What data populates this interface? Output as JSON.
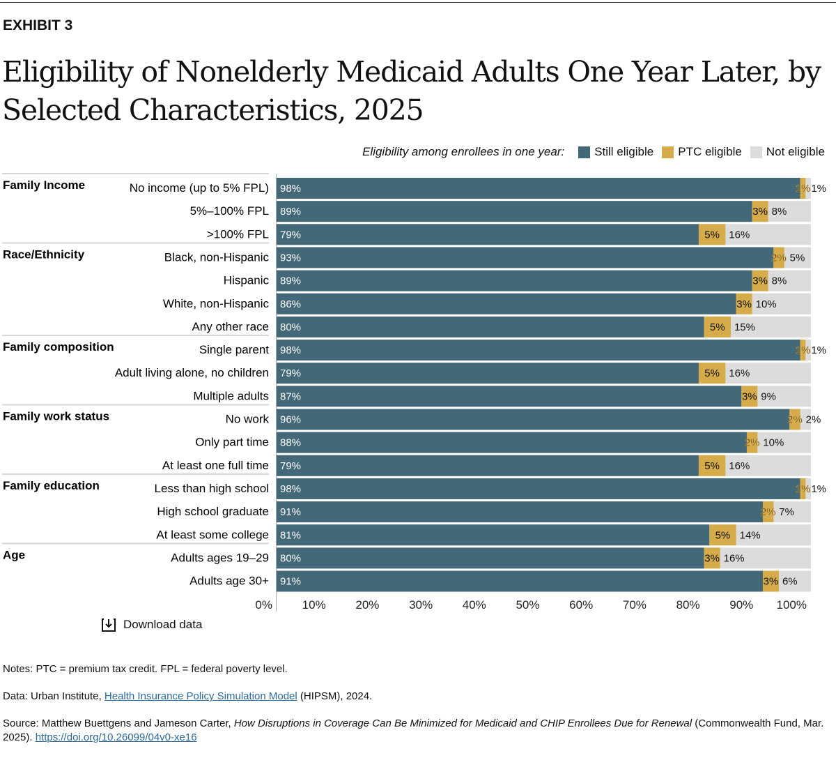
{
  "header": {
    "exhibit": "EXHIBIT 3",
    "title": "Eligibility of Nonelderly Medicaid Adults One Year Later, by Selected Characteristics, 2025"
  },
  "legend": {
    "title": "Eligibility among enrollees in one year:",
    "items": [
      {
        "label": "Still eligible",
        "color": "#436878"
      },
      {
        "label": "PTC eligible",
        "color": "#d6ab4a"
      },
      {
        "label": "Not eligible",
        "color": "#dcdcdc"
      }
    ]
  },
  "chart_data": {
    "type": "bar",
    "orientation": "horizontal",
    "stacked": true,
    "xlim": [
      0,
      100
    ],
    "x_ticks": [
      "0%",
      "10%",
      "20%",
      "30%",
      "40%",
      "50%",
      "60%",
      "70%",
      "80%",
      "90%",
      "100%"
    ],
    "series_names": [
      "Still eligible",
      "PTC eligible",
      "Not eligible"
    ],
    "groups": [
      {
        "name": "Family Income",
        "rows": [
          {
            "label": "No income (up to 5% FPL)",
            "values": [
              98,
              1,
              1
            ]
          },
          {
            "label": "5%–100% FPL",
            "values": [
              89,
              3,
              8
            ]
          },
          {
            "label": ">100% FPL",
            "values": [
              79,
              5,
              16
            ]
          }
        ]
      },
      {
        "name": "Race/Ethnicity",
        "rows": [
          {
            "label": "Black, non-Hispanic",
            "values": [
              93,
              2,
              5
            ]
          },
          {
            "label": "Hispanic",
            "values": [
              89,
              3,
              8
            ]
          },
          {
            "label": "White, non-Hispanic",
            "values": [
              86,
              3,
              10
            ]
          },
          {
            "label": "Any other race",
            "values": [
              80,
              5,
              15
            ]
          }
        ]
      },
      {
        "name": "Family composition",
        "rows": [
          {
            "label": "Single parent",
            "values": [
              98,
              1,
              1
            ]
          },
          {
            "label": "Adult living alone, no children",
            "values": [
              79,
              5,
              16
            ]
          },
          {
            "label": "Multiple adults",
            "values": [
              87,
              3,
              9
            ]
          }
        ]
      },
      {
        "name": "Family work status",
        "rows": [
          {
            "label": "No work",
            "values": [
              96,
              2,
              2
            ]
          },
          {
            "label": "Only part time",
            "values": [
              88,
              2,
              10
            ]
          },
          {
            "label": "At least one full time",
            "values": [
              79,
              5,
              16
            ]
          }
        ]
      },
      {
        "name": "Family education",
        "rows": [
          {
            "label": "Less than high school",
            "values": [
              98,
              1,
              1
            ]
          },
          {
            "label": "High school graduate",
            "values": [
              91,
              2,
              7
            ]
          },
          {
            "label": "At least some college",
            "values": [
              81,
              5,
              14
            ]
          }
        ]
      },
      {
        "name": "Age",
        "rows": [
          {
            "label": "Adults ages 19–29",
            "values": [
              80,
              3,
              16
            ]
          },
          {
            "label": "Adults age 30+",
            "values": [
              91,
              3,
              6
            ]
          }
        ]
      }
    ]
  },
  "download": "Download data",
  "notes": {
    "notes": "Notes: PTC = premium tax credit. FPL = federal poverty level.",
    "data_prefix": "Data: Urban Institute, ",
    "data_link": "Health Insurance Policy Simulation Model",
    "data_suffix": " (HIPSM), 2024.",
    "source_prefix": "Source: Matthew Buettgens and Jameson Carter, ",
    "source_title": "How Disruptions in Coverage Can Be Minimized for Medicaid and CHIP Enrollees Due for Renewal",
    "source_suffix": " (Commonwealth Fund, Mar. 2025). ",
    "source_link": "https://doi.org/10.26099/04v0-xe16"
  }
}
